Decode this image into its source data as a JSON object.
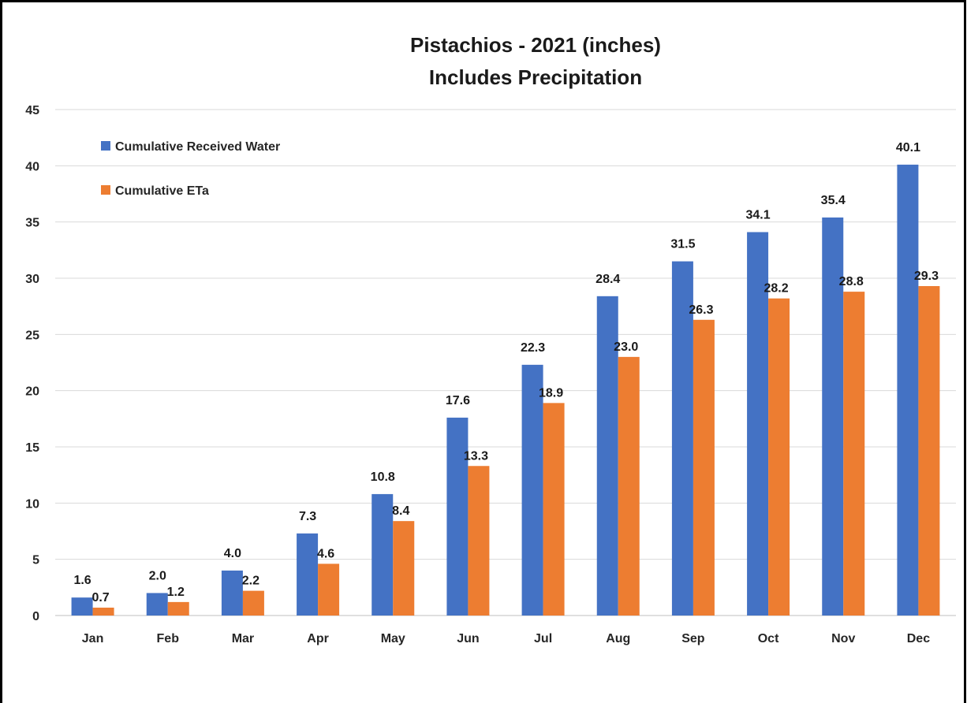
{
  "chart_data": {
    "type": "bar",
    "title": "Pistachios - 2021 (inches)",
    "subtitle": "Includes Precipitation",
    "categories": [
      "Jan",
      "Feb",
      "Mar",
      "Apr",
      "May",
      "Jun",
      "Jul",
      "Aug",
      "Sep",
      "Oct",
      "Nov",
      "Dec"
    ],
    "series": [
      {
        "name": "Cumulative Received Water",
        "color": "#4472C4",
        "values": [
          1.6,
          2.0,
          4.0,
          7.3,
          10.8,
          17.6,
          22.3,
          28.4,
          31.5,
          34.1,
          35.4,
          40.1
        ],
        "labels": [
          "1.6",
          "2.0",
          "4.0",
          "7.3",
          "10.8",
          "17.6",
          "22.3",
          "28.4",
          "31.5",
          "34.1",
          "35.4",
          "40.1"
        ]
      },
      {
        "name": "Cumulative ETa",
        "color": "#ED7D31",
        "values": [
          0.7,
          1.2,
          2.2,
          4.6,
          8.4,
          13.3,
          18.9,
          23.0,
          26.3,
          28.2,
          28.8,
          29.3
        ],
        "labels": [
          "0.7",
          "1.2",
          "2.2",
          "4.6",
          "8.4",
          "13.3",
          "18.9",
          "23.0",
          "26.3",
          "28.2",
          "28.8",
          "29.3"
        ]
      }
    ],
    "ylim": [
      0,
      45
    ],
    "yticks": [
      "0",
      "5",
      "10",
      "15",
      "20",
      "25",
      "30",
      "35",
      "40",
      "45"
    ],
    "grid": true,
    "legend_position": "top-left"
  }
}
